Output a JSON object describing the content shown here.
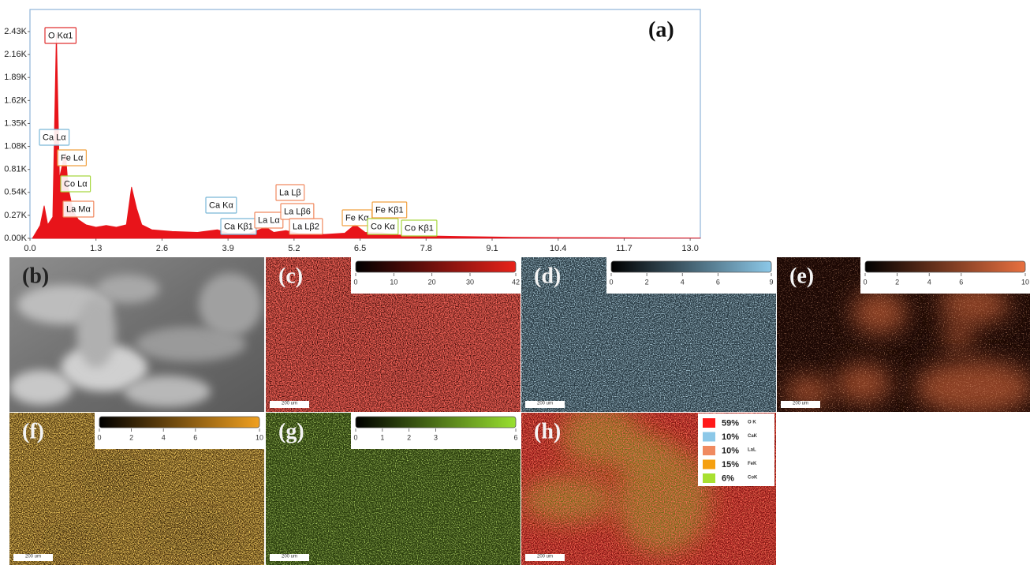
{
  "chart_data": {
    "type": "area",
    "panel_label": "(a)",
    "color": "#e8141a",
    "x": [
      0.05,
      0.2,
      0.28,
      0.35,
      0.45,
      0.52,
      0.58,
      0.65,
      0.7,
      0.75,
      0.85,
      0.95,
      1.1,
      1.3,
      1.5,
      1.7,
      1.9,
      2.0,
      2.1,
      2.2,
      2.4,
      2.8,
      3.3,
      3.69,
      3.9,
      4.3,
      4.65,
      4.8,
      5.04,
      5.3,
      5.8,
      6.2,
      6.4,
      6.6,
      6.93,
      7.2,
      7.6,
      8.5,
      9.5,
      10.5,
      12,
      13.2
    ],
    "values": [
      0,
      150,
      380,
      160,
      250,
      2400,
      700,
      900,
      1000,
      600,
      320,
      220,
      160,
      130,
      150,
      130,
      160,
      600,
      350,
      160,
      100,
      80,
      70,
      100,
      60,
      55,
      130,
      70,
      90,
      55,
      45,
      60,
      160,
      70,
      65,
      40,
      30,
      20,
      12,
      8,
      5,
      3
    ],
    "xlim": [
      0,
      13.2
    ],
    "ylim": [
      0,
      2690
    ],
    "xticks": [
      {
        "value": 0,
        "label": "0.0"
      },
      1.3,
      2.6,
      3.9,
      5.2,
      6.5,
      7.8,
      9.1,
      10.4,
      11.7,
      {
        "value": 13,
        "label": "13.0"
      }
    ],
    "yticks": [
      {
        "value": 0,
        "label": "0.00K"
      },
      {
        "value": 270,
        "label": "0.27K"
      },
      {
        "value": 540,
        "label": "0.54K"
      },
      {
        "value": 810,
        "label": "0.81K"
      },
      {
        "value": 1080,
        "label": "1.08K"
      },
      {
        "value": 1350,
        "label": "1.35K"
      },
      {
        "value": 1620,
        "label": "1.62K"
      },
      {
        "value": 1890,
        "label": "1.89K"
      },
      {
        "value": 2160,
        "label": "2.16K"
      },
      {
        "value": 2430,
        "label": "2.43K"
      }
    ],
    "annotations": [
      {
        "text": "O Kα1",
        "color": "#e03030"
      },
      {
        "text": "Ca Lα",
        "color": "#7ab8d8"
      },
      {
        "text": "Fe Lα",
        "color": "#f0a040"
      },
      {
        "text": "Co Lα",
        "color": "#a8d840"
      },
      {
        "text": "La Mα",
        "color": "#f08a60"
      },
      {
        "text": "Ca Kα",
        "color": "#7ab8d8"
      },
      {
        "text": "Ca Kβ1",
        "color": "#7ab8d8"
      },
      {
        "text": "La Lα",
        "color": "#f08a60"
      },
      {
        "text": "La Lβ",
        "color": "#f08a60"
      },
      {
        "text": "La Lβ6",
        "color": "#f08a60"
      },
      {
        "text": "La Lβ2",
        "color": "#f08a60"
      },
      {
        "text": "Fe Kα",
        "color": "#f0a040"
      },
      {
        "text": "Co Kα",
        "color": "#a8d840"
      },
      {
        "text": "Fe Kβ1",
        "color": "#f0a040"
      },
      {
        "text": "Co Kβ1",
        "color": "#a8d840"
      }
    ]
  },
  "maps": [
    {
      "label": "(b)"
    },
    {
      "label": "(c)",
      "color": "#e8221a",
      "colorbar": [
        0,
        10,
        20,
        30,
        42
      ],
      "scale": "200 um"
    },
    {
      "label": "(d)",
      "color": "#8cc8e8",
      "colorbar": [
        0,
        2,
        4,
        6,
        9
      ],
      "scale": "200 um"
    },
    {
      "label": "(e)",
      "color": "#e87040",
      "colorbar": [
        0,
        2,
        4,
        6,
        10
      ],
      "scale": "200 um"
    },
    {
      "label": "(f)",
      "color": "#f0a020",
      "colorbar": [
        0,
        2,
        4,
        6,
        10
      ],
      "scale": "200 um"
    },
    {
      "label": "(g)",
      "color": "#98e030",
      "colorbar": [
        0,
        1,
        2,
        3,
        6
      ],
      "scale": "200 um"
    },
    {
      "label": "(h)",
      "scale": "200 um"
    }
  ],
  "overlay_legend": [
    {
      "percent": "59%",
      "element": "O K",
      "color": "#ff1a1a"
    },
    {
      "percent": "10%",
      "element": "CaK",
      "color": "#8cc8e8"
    },
    {
      "percent": "10%",
      "element": "LaL",
      "color": "#f08a60"
    },
    {
      "percent": "15%",
      "element": "FeK",
      "color": "#f5a010"
    },
    {
      "percent": "6%",
      "element": "CoK",
      "color": "#a8e030"
    }
  ]
}
